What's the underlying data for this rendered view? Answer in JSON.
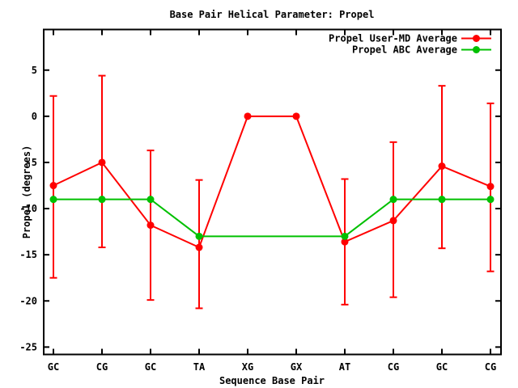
{
  "chart_data": {
    "type": "line",
    "title": "Base Pair Helical Parameter: Propel",
    "xlabel": "Sequence Base Pair",
    "ylabel": "Propel (degrees)",
    "categories": [
      "GC",
      "CG",
      "GC",
      "TA",
      "XG",
      "GX",
      "AT",
      "CG",
      "GC",
      "CG"
    ],
    "y_ticks": [
      5,
      0,
      -5,
      -10,
      -15,
      -20,
      -25
    ],
    "ylim": [
      -25.8,
      9.4
    ],
    "grid": false,
    "background": "#ffffff",
    "axis_color": "#000000",
    "legend_position": "top-right-inside",
    "series": [
      {
        "name": "Propel User-MD Average",
        "color": "#ff0000",
        "marker": "filled-circle",
        "values": [
          -7.5,
          -5.0,
          -11.8,
          -14.2,
          0.0,
          0.0,
          -13.6,
          -11.3,
          -5.4,
          -7.6
        ],
        "error_high": [
          2.2,
          4.4,
          -3.7,
          -6.9,
          null,
          null,
          -6.8,
          -2.8,
          3.3,
          1.4
        ],
        "error_low": [
          -17.5,
          -14.2,
          -19.9,
          -20.8,
          null,
          null,
          -20.4,
          -19.6,
          -14.3,
          -16.8
        ]
      },
      {
        "name": "Propel ABC Average",
        "color": "#00c000",
        "marker": "filled-circle",
        "values": [
          -9.0,
          -9.0,
          -9.0,
          -13.0,
          null,
          null,
          -13.0,
          -9.0,
          -9.0,
          -9.0
        ],
        "error_high": null,
        "error_low": null
      }
    ]
  }
}
